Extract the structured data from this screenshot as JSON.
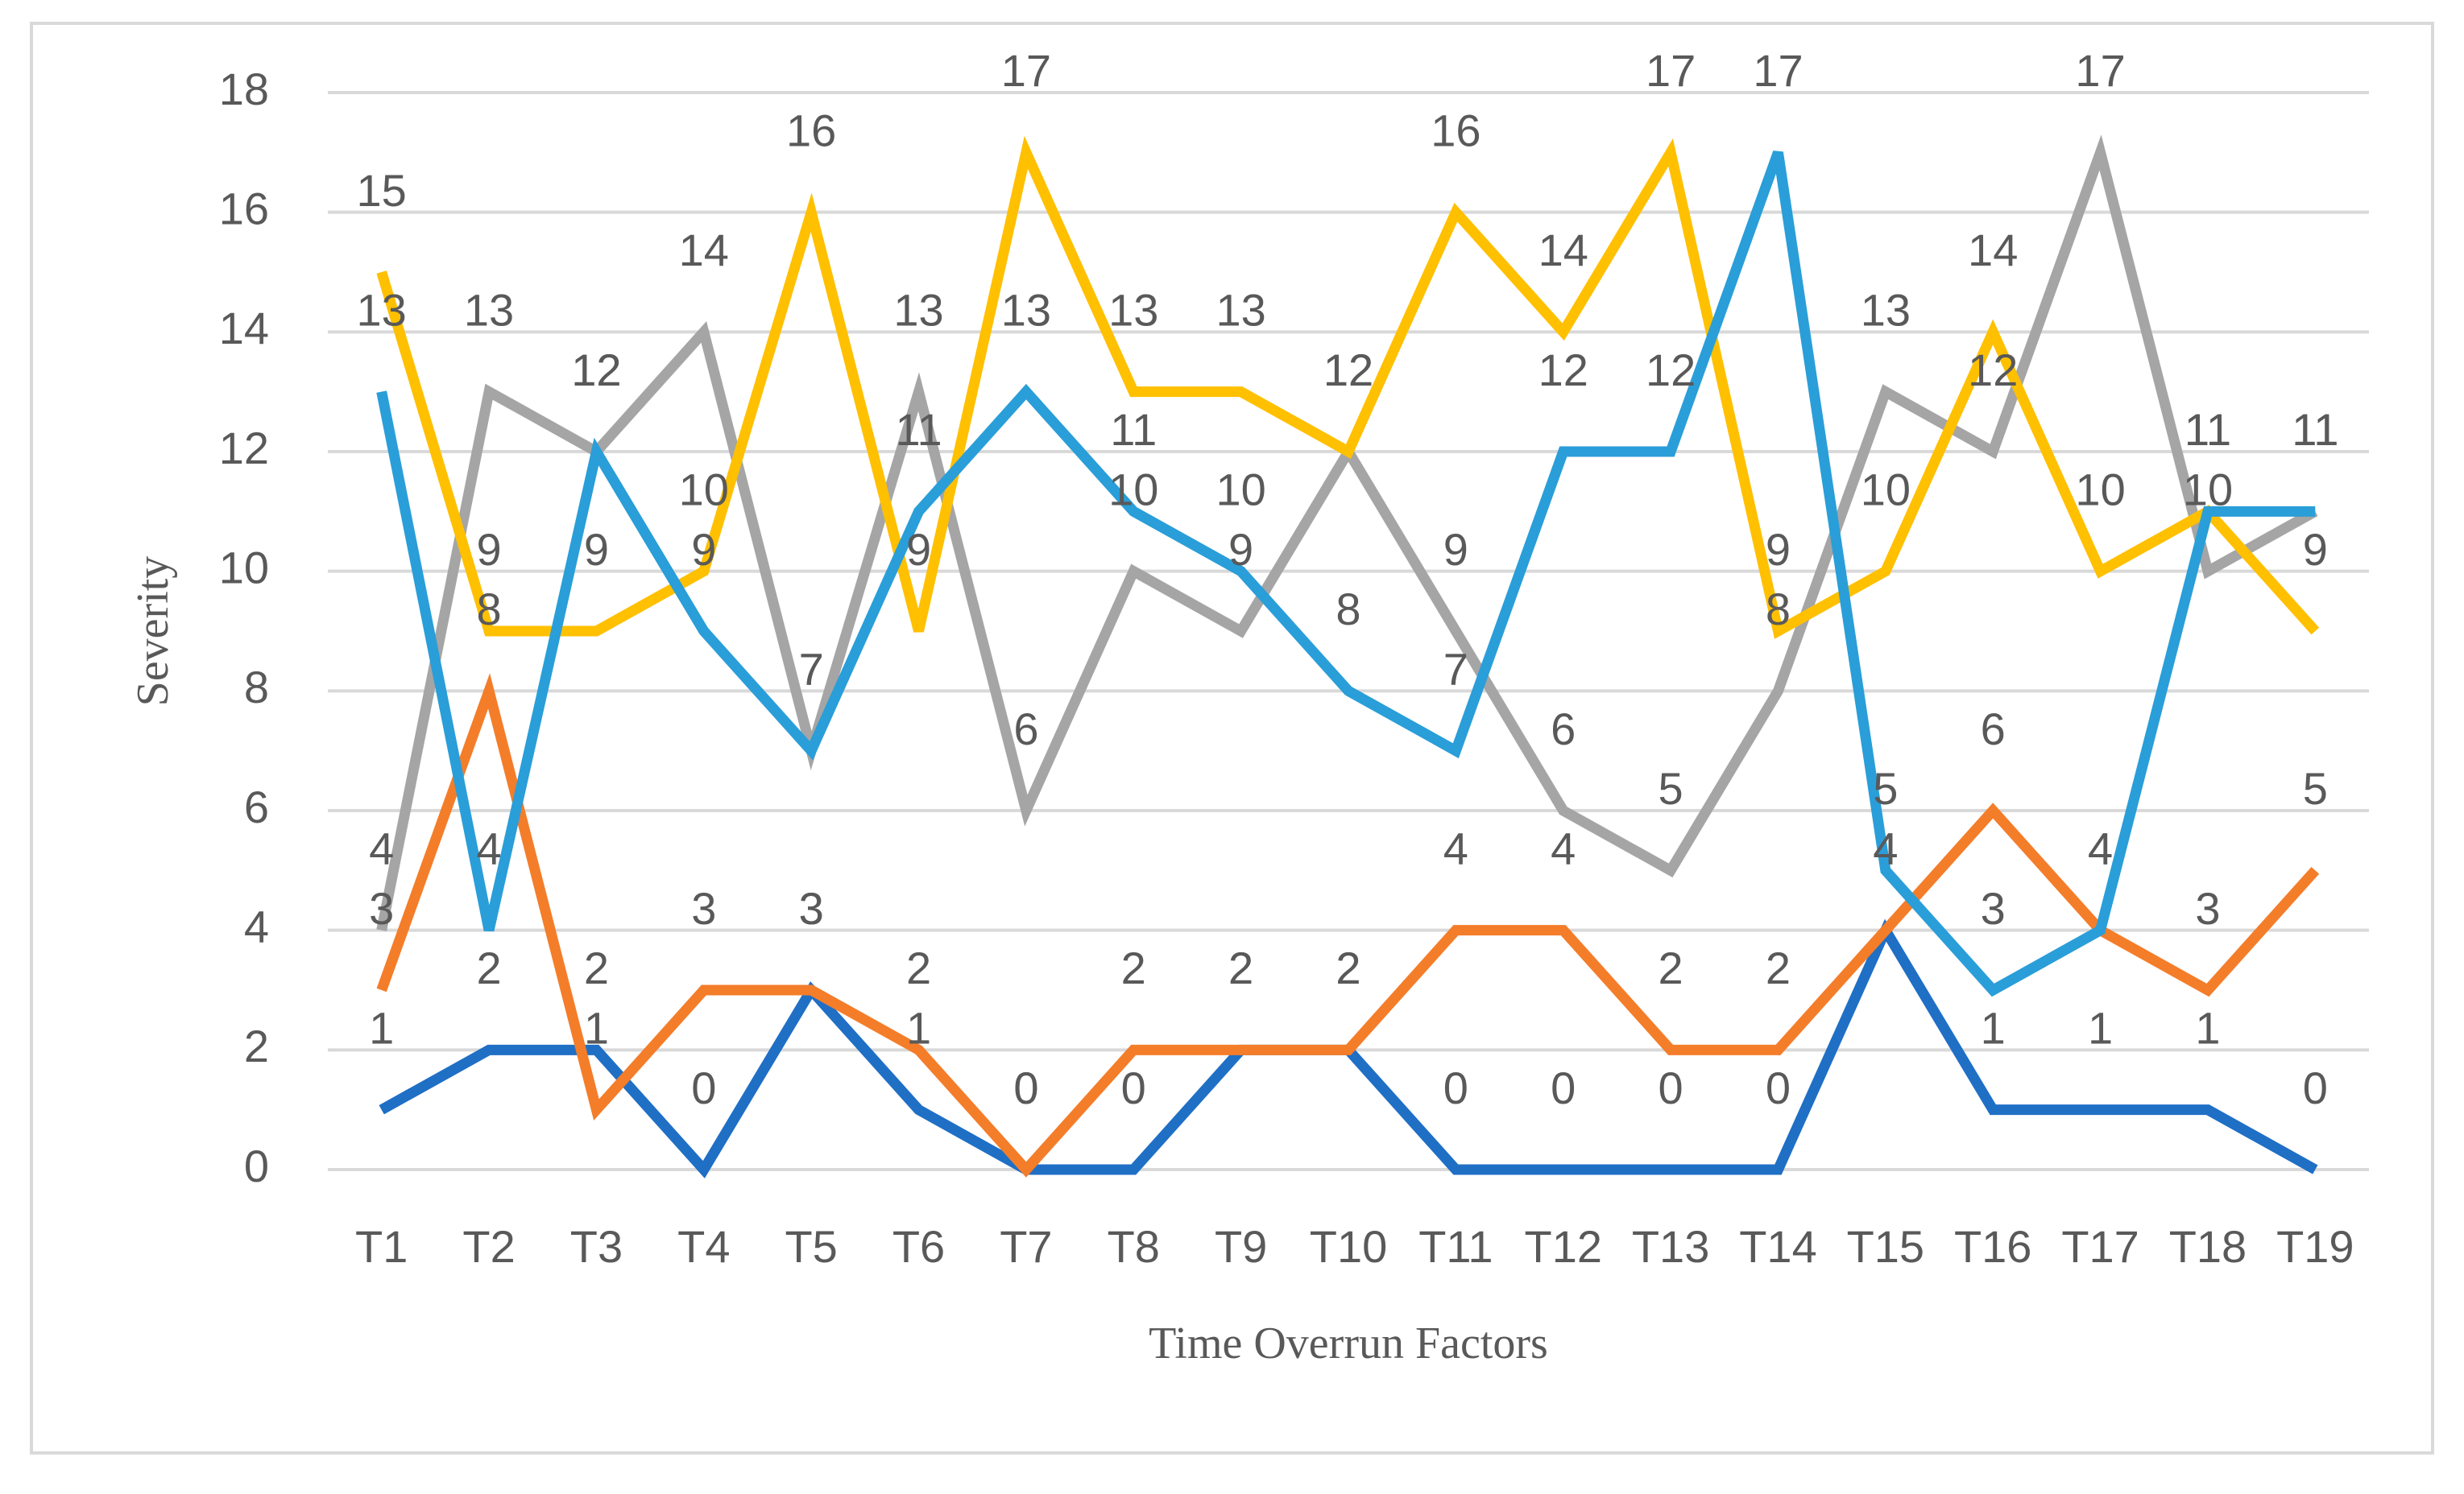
{
  "chart_data": {
    "type": "line",
    "x_label": "Time Overrun Factors",
    "y_label": "Severity",
    "categories": [
      "T1",
      "T2",
      "T3",
      "T4",
      "T5",
      "T6",
      "T7",
      "T8",
      "T9",
      "T10",
      "T11",
      "T12",
      "T13",
      "T14",
      "T15",
      "T16",
      "T17",
      "T18",
      "T19"
    ],
    "series": [
      {
        "color": "#1f6fc5",
        "values": [
          1,
          2,
          2,
          0,
          3,
          1,
          0,
          0,
          2,
          2,
          0,
          0,
          0,
          0,
          4,
          1,
          1,
          1,
          0
        ]
      },
      {
        "color": "#f47d2a",
        "values": [
          3,
          8,
          1,
          3,
          3,
          2,
          0,
          2,
          2,
          2,
          4,
          4,
          2,
          2,
          4,
          6,
          4,
          3,
          5
        ]
      },
      {
        "color": "#a5a5a5",
        "values": [
          4,
          13,
          12,
          14,
          7,
          13,
          6,
          10,
          9,
          12,
          9,
          6,
          5,
          8,
          13,
          12,
          17,
          10,
          11
        ]
      },
      {
        "color": "#ffc000",
        "values": [
          15,
          9,
          9,
          10,
          16,
          9,
          17,
          13,
          13,
          12,
          16,
          14,
          17,
          9,
          10,
          14,
          10,
          11,
          9
        ]
      },
      {
        "color": "#2a9ed8",
        "values": [
          13,
          4,
          12,
          9,
          7,
          11,
          13,
          11,
          10,
          8,
          7,
          12,
          12,
          17,
          5,
          3,
          4,
          11,
          11
        ]
      }
    ],
    "ylim": [
      0,
      18
    ],
    "yticks": [
      0,
      2,
      4,
      6,
      8,
      10,
      12,
      14,
      16,
      18
    ],
    "grid": true,
    "data_labels": true
  }
}
